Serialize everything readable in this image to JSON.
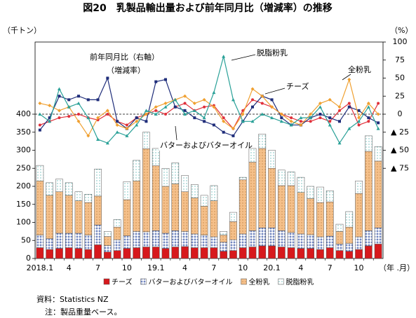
{
  "chart_data": {
    "type": "bar",
    "title": "図20　乳製品輸出量および前年同月比（増減率）の推移",
    "y_label": "（千トン）",
    "y2_label": "（%）",
    "y2_title": "前年同月比（右軸）",
    "y2_subtitle": "（増減率）",
    "x_label": "（年 .月）",
    "source": "資料：Statistics NZ",
    "note": "注：製品重量ベース。",
    "stacked": true,
    "zero_line_y2": "dashed",
    "legend": "bottom",
    "categories": [
      "2018.1",
      null,
      null,
      "4",
      null,
      null,
      "7",
      null,
      null,
      "10",
      null,
      null,
      "19.1",
      null,
      null,
      "4",
      null,
      null,
      "7",
      null,
      null,
      "10",
      null,
      null,
      "20.1",
      null,
      null,
      "4",
      null,
      null,
      "7",
      null,
      null,
      "10",
      null,
      null
    ],
    "ylim": [
      0,
      600
    ],
    "yticks": [
      0,
      50,
      100,
      150,
      200,
      250,
      300,
      350,
      400
    ],
    "y2lim": [
      -200,
      100
    ],
    "y2ticks": [
      100,
      75,
      50,
      25,
      0,
      {
        "value": -25,
        "label": "▲ 25"
      },
      {
        "value": -50,
        "label": "▲ 50"
      },
      {
        "value": -75,
        "label": "▲ 75"
      }
    ],
    "series": [
      {
        "name": "チーズ",
        "type": "bar",
        "color": "#d7191c",
        "pattern": "solid",
        "values": [
          30,
          25,
          28,
          30,
          28,
          25,
          38,
          18,
          22,
          28,
          30,
          32,
          32,
          28,
          32,
          33,
          30,
          30,
          30,
          20,
          22,
          30,
          32,
          35,
          35,
          32,
          30,
          28,
          28,
          25,
          30,
          22,
          20,
          25,
          35,
          40
        ]
      },
      {
        "name": "バターおよびバターオイル",
        "type": "bar",
        "color": "#1f3f9a",
        "pattern": "cross",
        "values": [
          35,
          30,
          42,
          40,
          42,
          40,
          55,
          18,
          30,
          35,
          45,
          42,
          45,
          42,
          45,
          42,
          38,
          35,
          30,
          25,
          30,
          38,
          45,
          50,
          50,
          45,
          42,
          40,
          38,
          35,
          32,
          18,
          22,
          35,
          42,
          45
        ]
      },
      {
        "name": "全粉乳",
        "type": "bar",
        "color": "#f5c08a",
        "pattern": "dots",
        "values": [
          150,
          120,
          115,
          105,
          90,
          90,
          80,
          25,
          35,
          100,
          140,
          230,
          180,
          130,
          130,
          110,
          100,
          80,
          100,
          20,
          50,
          150,
          190,
          220,
          165,
          125,
          130,
          115,
          100,
          95,
          95,
          35,
          45,
          120,
          220,
          185
        ]
      },
      {
        "name": "脱脂粉乳",
        "type": "bar",
        "color": "#2a9d9a",
        "pattern": "dots-light",
        "values": [
          43,
          35,
          35,
          35,
          25,
          23,
          75,
          14,
          21,
          50,
          57,
          46,
          48,
          50,
          58,
          45,
          37,
          30,
          42,
          10,
          26,
          7,
          38,
          40,
          50,
          43,
          38,
          42,
          34,
          43,
          31,
          20,
          43,
          35,
          43,
          40
        ]
      },
      {
        "name": "チーズ",
        "type": "line",
        "axis": "y2",
        "color": "#e0303a",
        "marker": "circle",
        "values": [
          -15,
          -10,
          -5,
          -3,
          0,
          -5,
          -8,
          0,
          -10,
          -15,
          -5,
          0,
          5,
          0,
          10,
          15,
          5,
          10,
          12,
          -5,
          -20,
          5,
          20,
          15,
          10,
          0,
          -5,
          -10,
          -10,
          -5,
          -10,
          5,
          15,
          -15,
          -10,
          15
        ]
      },
      {
        "name": "バターおよびバターオイル",
        "type": "line",
        "axis": "y2",
        "color": "#1f2d7a",
        "marker": "square",
        "values": [
          -22,
          -5,
          25,
          20,
          25,
          20,
          20,
          50,
          -10,
          -20,
          -5,
          -10,
          45,
          48,
          10,
          5,
          -5,
          -10,
          -15,
          -25,
          -30,
          -10,
          10,
          25,
          20,
          -5,
          -15,
          -15,
          -5,
          0,
          -5,
          -10,
          10,
          5,
          -5,
          -12
        ]
      },
      {
        "name": "全粉乳",
        "type": "line",
        "axis": "y2",
        "color": "#f0a030",
        "marker": "diamond",
        "values": [
          15,
          12,
          5,
          10,
          -10,
          -30,
          -5,
          5,
          -15,
          -20,
          -10,
          0,
          10,
          15,
          20,
          25,
          15,
          20,
          10,
          -10,
          -20,
          0,
          35,
          25,
          10,
          0,
          -10,
          -15,
          0,
          15,
          20,
          10,
          48,
          -5,
          15,
          0
        ]
      },
      {
        "name": "脱脂粉乳",
        "type": "line",
        "axis": "y2",
        "color": "#2aa198",
        "marker": "triangle",
        "values": [
          0,
          -10,
          35,
          10,
          15,
          -5,
          -35,
          -40,
          -25,
          -30,
          -15,
          5,
          0,
          10,
          20,
          0,
          5,
          -5,
          30,
          80,
          20,
          -10,
          -10,
          0,
          -5,
          -10,
          -15,
          -5,
          -5,
          10,
          -15,
          -40,
          -20,
          -10,
          10,
          -20
        ]
      }
    ]
  }
}
